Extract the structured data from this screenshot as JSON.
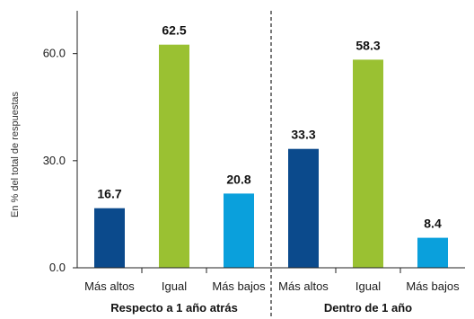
{
  "chart_data": {
    "type": "bar",
    "ylabel": "En % del total de respuestas",
    "ylim": [
      0,
      72
    ],
    "yticks": [
      "0.0",
      "30.0",
      "60.0"
    ],
    "grid": false,
    "groups": [
      {
        "label": "Respecto a 1 año atrás",
        "categories": [
          "Más altos",
          "Igual",
          "Más bajos"
        ],
        "values": [
          16.7,
          62.5,
          20.8
        ],
        "value_labels": [
          "16.7",
          "62.5",
          "20.8"
        ]
      },
      {
        "label": "Dentro de 1 año",
        "categories": [
          "Más altos",
          "Igual",
          "Más bajos"
        ],
        "values": [
          33.3,
          58.3,
          8.4
        ],
        "value_labels": [
          "33.3",
          "58.3",
          "8.4"
        ]
      }
    ],
    "colors": {
      "Más altos": "#0b4a8c",
      "Igual": "#9ac132",
      "Más bajos": "#0aa0dc"
    },
    "separator": "dashed"
  }
}
